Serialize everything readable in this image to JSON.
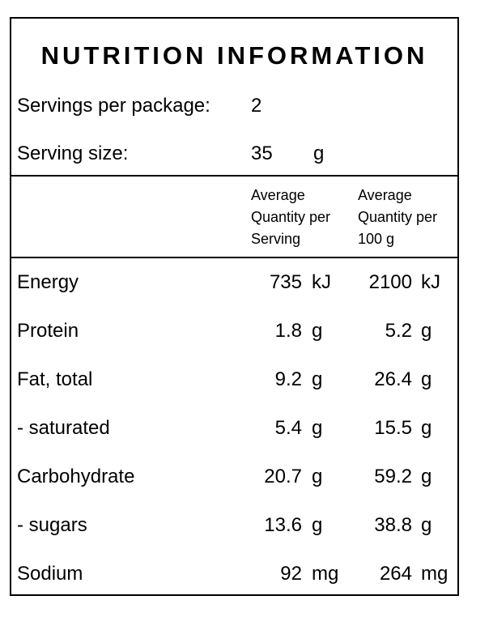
{
  "title": "NUTRITION INFORMATION",
  "servings": {
    "label": "Servings per package:",
    "value": "2"
  },
  "serving_size": {
    "label": "Serving size:",
    "value": "35",
    "unit": "g"
  },
  "columns": [
    {
      "lines": [
        "Average",
        "Quantity per",
        "Serving"
      ]
    },
    {
      "lines": [
        "Average",
        "Quantity per",
        "100 g"
      ]
    }
  ],
  "rows": [
    {
      "name": "Energy",
      "per_serving": "735",
      "per_serving_unit": "kJ",
      "per_100g": "2100",
      "per_100g_unit": "kJ"
    },
    {
      "name": "Protein",
      "per_serving": "1.8",
      "per_serving_unit": "g",
      "per_100g": "5.2",
      "per_100g_unit": "g"
    },
    {
      "name": "Fat, total",
      "per_serving": "9.2",
      "per_serving_unit": "g",
      "per_100g": "26.4",
      "per_100g_unit": "g"
    },
    {
      "name": "- saturated",
      "per_serving": "5.4",
      "per_serving_unit": "g",
      "per_100g": "15.5",
      "per_100g_unit": "g"
    },
    {
      "name": "Carbohydrate",
      "per_serving": "20.7",
      "per_serving_unit": "g",
      "per_100g": "59.2",
      "per_100g_unit": "g"
    },
    {
      "name": "- sugars",
      "per_serving": "13.6",
      "per_serving_unit": "g",
      "per_100g": "38.8",
      "per_100g_unit": "g"
    },
    {
      "name": "Sodium",
      "per_serving": "92",
      "per_serving_unit": "mg",
      "per_100g": "264",
      "per_100g_unit": "mg"
    }
  ]
}
